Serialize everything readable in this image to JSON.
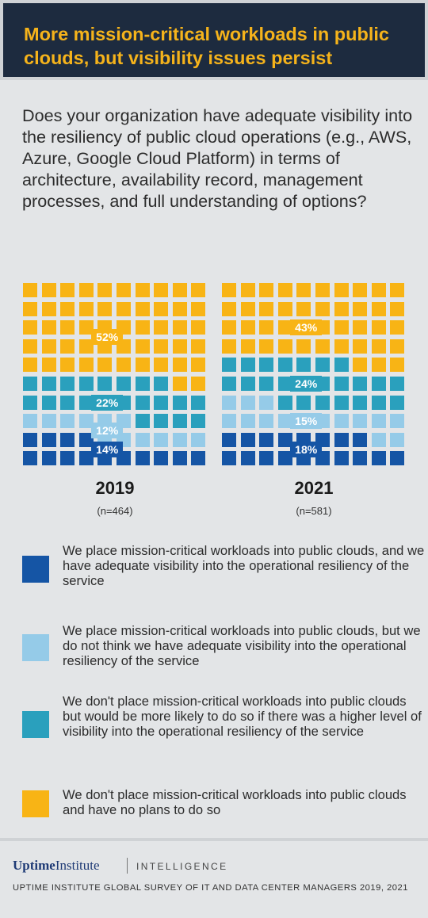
{
  "header": {
    "title": "More mission-critical workloads in public clouds, but visibility issues persist"
  },
  "question": "Does your organization have adequate visibility into the resiliency of public cloud operations (e.g., AWS, Azure, Google Cloud Platform) in terms of architecture, availability record, management processes, and full understanding of options?",
  "colors": {
    "adequate": "#1555a5",
    "not_adequate": "#95cbe8",
    "more_likely": "#2aa0bd",
    "no_plans": "#f8b415"
  },
  "chart_data": {
    "type": "waffle",
    "grid": {
      "rows": 10,
      "cols": 10
    },
    "categories": [
      "We place mission-critical workloads into public clouds, and we have adequate visibility into the operational resiliency of the service",
      "We place mission-critical workloads into public clouds, but we do not think we have adequate visibility into the operational resiliency of the service",
      "We don't place mission-critical workloads into public clouds but would be more likely to do so if there was a higher level of visibility into the operational resiliency of the service",
      "We don't place mission-critical workloads into public clouds and have no plans to do so"
    ],
    "series": [
      {
        "name": "2019",
        "n_label": "(n=464)",
        "values": [
          14,
          12,
          22,
          52
        ],
        "labels": [
          "14%",
          "12%",
          "22%",
          "52%"
        ]
      },
      {
        "name": "2021",
        "n_label": "(n=581)",
        "values": [
          18,
          15,
          24,
          43
        ],
        "labels": [
          "18%",
          "15%",
          "24%",
          "43%"
        ]
      }
    ]
  },
  "legend": [
    {
      "key": "adequate",
      "text": "We place mission-critical workloads into public clouds, and we have adequate visibility into the operational resiliency of the service"
    },
    {
      "key": "not_adequate",
      "text": "We place mission-critical workloads into public clouds, but we do not think we have adequate visibility into the operational resiliency of the service"
    },
    {
      "key": "more_likely",
      "text": "We don't place mission-critical workloads into public clouds but would be more likely to do so if there was a higher level of visibility into the operational resiliency of the service"
    },
    {
      "key": "no_plans",
      "text": "We don't place mission-critical workloads into public clouds and have no plans to do so"
    }
  ],
  "footer": {
    "brand_name_1": "Uptime",
    "brand_name_2": "Institute",
    "brand_sub": "INTELLIGENCE",
    "source": "UPTIME INSTITUTE GLOBAL SURVEY OF IT AND DATA CENTER MANAGERS 2019, 2021"
  }
}
